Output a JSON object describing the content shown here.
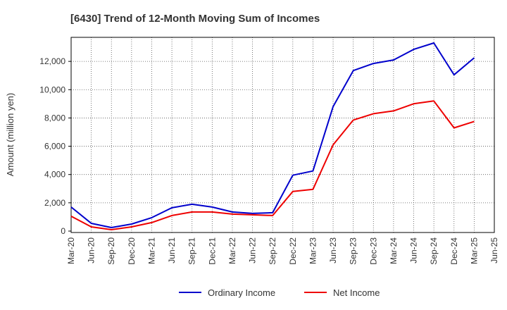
{
  "chart_data": {
    "type": "line",
    "title": "[6430]  Trend of 12-Month Moving Sum of Incomes",
    "xlabel": "",
    "ylabel": "Amount (million yen)",
    "ylim": [
      -100,
      13700
    ],
    "yticks": [
      0,
      2000,
      4000,
      6000,
      8000,
      10000,
      12000
    ],
    "ytick_labels": [
      "0",
      "2,000",
      "4,000",
      "6,000",
      "8,000",
      "10,000",
      "12,000"
    ],
    "categories": [
      "Mar-20",
      "Jun-20",
      "Sep-20",
      "Dec-20",
      "Mar-21",
      "Jun-21",
      "Sep-21",
      "Dec-21",
      "Mar-22",
      "Jun-22",
      "Sep-22",
      "Dec-22",
      "Mar-23",
      "Jun-23",
      "Sep-23",
      "Dec-23",
      "Mar-24",
      "Jun-24",
      "Sep-24",
      "Dec-24",
      "Mar-25",
      "Jun-25"
    ],
    "grid": true,
    "legend_position": "bottom",
    "series": [
      {
        "name": "Ordinary Income",
        "color": "#0000cc",
        "values": [
          1700,
          550,
          250,
          500,
          950,
          1650,
          1900,
          1700,
          1350,
          1250,
          1300,
          3950,
          4250,
          8800,
          11350,
          11850,
          12100,
          12850,
          13300,
          11050,
          12250,
          null
        ]
      },
      {
        "name": "Net Income",
        "color": "#ee0000",
        "values": [
          1050,
          300,
          100,
          300,
          600,
          1100,
          1350,
          1350,
          1200,
          1150,
          1100,
          2800,
          2950,
          6100,
          7850,
          8300,
          8500,
          9000,
          9200,
          7300,
          7750,
          null
        ]
      }
    ]
  }
}
